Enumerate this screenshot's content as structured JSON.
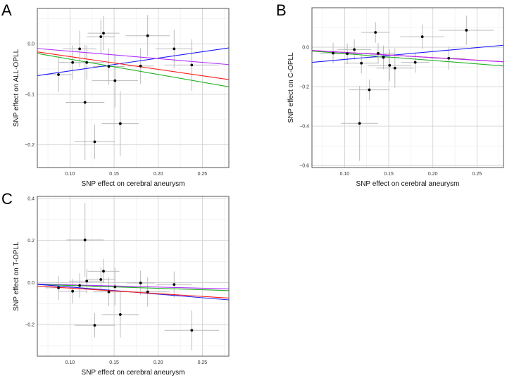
{
  "colors": {
    "blue": "#1a1aff",
    "red": "#ff1a1a",
    "green": "#22b022",
    "purple": "#b030ff",
    "point": "#000000",
    "errorbar": "#bbbbbb",
    "grid": "#d9d9d9",
    "border": "#555555"
  },
  "chart_data": [
    {
      "type": "scatter",
      "panel_label": "A",
      "xlabel": "SNP effect on cerebral aneurysm",
      "ylabel": "SNP effect on ALL-OPLL",
      "xlim": [
        0.063,
        0.28
      ],
      "ylim": [
        -0.245,
        0.07
      ],
      "xticks": [
        0.1,
        0.15,
        0.2,
        0.25
      ],
      "xtick_labels": [
        "0.10",
        "0.15",
        "0.20",
        "0.25"
      ],
      "yticks": [
        -0.2,
        -0.1,
        0.0
      ],
      "ytick_labels": [
        "−0.2",
        "−0.1",
        "0.0"
      ],
      "grid": true,
      "points": [
        {
          "x": 0.087,
          "y": -0.061,
          "xerr": 0.015,
          "yerr": 0.034
        },
        {
          "x": 0.103,
          "y": -0.037,
          "xerr": 0.016,
          "yerr": 0.034
        },
        {
          "x": 0.111,
          "y": -0.01,
          "xerr": 0.019,
          "yerr": 0.036
        },
        {
          "x": 0.119,
          "y": -0.037,
          "xerr": 0.02,
          "yerr": 0.034
        },
        {
          "x": 0.117,
          "y": -0.116,
          "xerr": 0.022,
          "yerr": 0.114
        },
        {
          "x": 0.128,
          "y": -0.194,
          "xerr": 0.023,
          "yerr": 0.034
        },
        {
          "x": 0.135,
          "y": 0.014,
          "xerr": 0.016,
          "yerr": 0.034
        },
        {
          "x": 0.138,
          "y": 0.021,
          "xerr": 0.018,
          "yerr": 0.034
        },
        {
          "x": 0.144,
          "y": -0.045,
          "xerr": 0.018,
          "yerr": 0.036
        },
        {
          "x": 0.151,
          "y": -0.073,
          "xerr": 0.026,
          "yerr": 0.053
        },
        {
          "x": 0.157,
          "y": -0.158,
          "xerr": 0.021,
          "yerr": 0.064
        },
        {
          "x": 0.18,
          "y": -0.044,
          "xerr": 0.015,
          "yerr": 0.036
        },
        {
          "x": 0.188,
          "y": 0.016,
          "xerr": 0.025,
          "yerr": 0.041
        },
        {
          "x": 0.218,
          "y": -0.01,
          "xerr": 0.021,
          "yerr": 0.038
        },
        {
          "x": 0.238,
          "y": -0.042,
          "xerr": 0.031,
          "yerr": 0.051
        }
      ],
      "lines": [
        {
          "color": "blue",
          "intercept": -0.079,
          "slope": 0.253
        },
        {
          "color": "red",
          "intercept": 0.0,
          "slope": -0.253
        },
        {
          "color": "green",
          "intercept": 0.0,
          "slope": -0.304
        },
        {
          "color": "purple",
          "intercept": 0.0,
          "slope": -0.147
        }
      ]
    },
    {
      "type": "scatter",
      "panel_label": "B",
      "xlabel": "SNP effect on cerebral aneurysm",
      "ylabel": "SNP effect on C-OPLL",
      "xlim": [
        0.063,
        0.28
      ],
      "ylim": [
        -0.61,
        0.2
      ],
      "xticks": [
        0.1,
        0.15,
        0.2,
        0.25
      ],
      "xtick_labels": [
        "0.10",
        "0.15",
        "0.20",
        "0.25"
      ],
      "yticks": [
        -0.6,
        -0.4,
        -0.2,
        0.0
      ],
      "ytick_labels": [
        "−0.6",
        "−0.4",
        "−0.2",
        "0.0"
      ],
      "grid": true,
      "points": [
        {
          "x": 0.087,
          "y": -0.03,
          "xerr": 0.015,
          "yerr": 0.052
        },
        {
          "x": 0.103,
          "y": -0.033,
          "xerr": 0.016,
          "yerr": 0.052
        },
        {
          "x": 0.111,
          "y": -0.012,
          "xerr": 0.019,
          "yerr": 0.052
        },
        {
          "x": 0.119,
          "y": -0.081,
          "xerr": 0.02,
          "yerr": 0.052
        },
        {
          "x": 0.117,
          "y": -0.386,
          "xerr": 0.021,
          "yerr": 0.19
        },
        {
          "x": 0.128,
          "y": -0.216,
          "xerr": 0.023,
          "yerr": 0.052
        },
        {
          "x": 0.135,
          "y": 0.075,
          "xerr": 0.016,
          "yerr": 0.052
        },
        {
          "x": 0.138,
          "y": -0.031,
          "xerr": 0.018,
          "yerr": 0.052
        },
        {
          "x": 0.144,
          "y": -0.052,
          "xerr": 0.018,
          "yerr": 0.06
        },
        {
          "x": 0.151,
          "y": -0.092,
          "xerr": 0.025,
          "yerr": 0.08
        },
        {
          "x": 0.157,
          "y": -0.106,
          "xerr": 0.021,
          "yerr": 0.1
        },
        {
          "x": 0.18,
          "y": -0.077,
          "xerr": 0.016,
          "yerr": 0.052
        },
        {
          "x": 0.188,
          "y": 0.053,
          "xerr": 0.025,
          "yerr": 0.062
        },
        {
          "x": 0.218,
          "y": -0.056,
          "xerr": 0.02,
          "yerr": 0.058
        },
        {
          "x": 0.238,
          "y": 0.086,
          "xerr": 0.031,
          "yerr": 0.074
        }
      ],
      "lines": [
        {
          "color": "blue",
          "intercept": -0.102,
          "slope": 0.4
        },
        {
          "color": "green",
          "intercept": 0.002,
          "slope": -0.346
        },
        {
          "color": "red",
          "intercept": 0.0,
          "slope": -0.263
        },
        {
          "color": "purple",
          "intercept": 0.0,
          "slope": -0.265
        }
      ]
    },
    {
      "type": "scatter",
      "panel_label": "C",
      "xlabel": "SNP effect on cerebral aneurysm",
      "ylabel": "SNP effect on T-OPLL",
      "xlim": [
        0.063,
        0.28
      ],
      "ylim": [
        -0.35,
        0.41
      ],
      "xticks": [
        0.1,
        0.15,
        0.2,
        0.25
      ],
      "xtick_labels": [
        "0.10",
        "0.15",
        "0.20",
        "0.25"
      ],
      "yticks": [
        -0.2,
        0.0,
        0.2,
        0.4
      ],
      "ytick_labels": [
        "−0.2",
        "0.0",
        "0.2",
        "0.4"
      ],
      "grid": true,
      "points": [
        {
          "x": 0.087,
          "y": -0.025,
          "xerr": 0.015,
          "yerr": 0.058
        },
        {
          "x": 0.103,
          "y": -0.041,
          "xerr": 0.016,
          "yerr": 0.058
        },
        {
          "x": 0.111,
          "y": -0.014,
          "xerr": 0.019,
          "yerr": 0.058
        },
        {
          "x": 0.119,
          "y": 0.007,
          "xerr": 0.02,
          "yerr": 0.058
        },
        {
          "x": 0.117,
          "y": 0.203,
          "xerr": 0.021,
          "yerr": 0.175
        },
        {
          "x": 0.128,
          "y": -0.203,
          "xerr": 0.023,
          "yerr": 0.058
        },
        {
          "x": 0.135,
          "y": 0.015,
          "xerr": 0.016,
          "yerr": 0.058
        },
        {
          "x": 0.138,
          "y": 0.054,
          "xerr": 0.018,
          "yerr": 0.058
        },
        {
          "x": 0.144,
          "y": -0.044,
          "xerr": 0.018,
          "yerr": 0.068
        },
        {
          "x": 0.151,
          "y": -0.02,
          "xerr": 0.025,
          "yerr": 0.09
        },
        {
          "x": 0.157,
          "y": -0.152,
          "xerr": 0.021,
          "yerr": 0.11
        },
        {
          "x": 0.18,
          "y": -0.002,
          "xerr": 0.016,
          "yerr": 0.058
        },
        {
          "x": 0.188,
          "y": -0.044,
          "xerr": 0.025,
          "yerr": 0.07
        },
        {
          "x": 0.218,
          "y": -0.009,
          "xerr": 0.02,
          "yerr": 0.062
        },
        {
          "x": 0.238,
          "y": -0.227,
          "xerr": 0.031,
          "yerr": 0.095
        }
      ],
      "lines": [
        {
          "color": "purple",
          "intercept": 0.0,
          "slope": -0.107
        },
        {
          "color": "green",
          "intercept": 0.0,
          "slope": -0.136
        },
        {
          "color": "blue",
          "intercept": 0.013,
          "slope": -0.34
        },
        {
          "color": "red",
          "intercept": 0.0,
          "slope": -0.263
        }
      ]
    }
  ]
}
